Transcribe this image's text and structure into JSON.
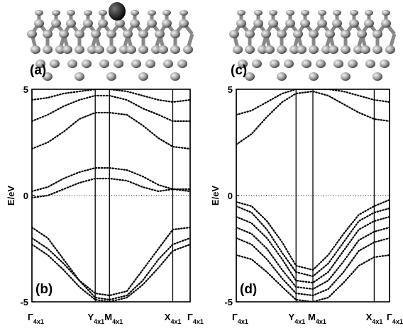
{
  "chart_data": [
    {
      "type": "line",
      "image_label": "(a)",
      "panel_label": "(b)",
      "ylabel": "E/eV",
      "x": [
        0,
        0.1,
        0.2,
        0.3,
        0.4,
        0.49,
        0.6,
        0.7,
        0.8,
        0.89,
        1
      ],
      "xlim": [
        0,
        1
      ],
      "xticks": [
        {
          "value": 0,
          "label": "Γ",
          "sub": "4x1"
        },
        {
          "value": 0.4,
          "label": "Y",
          "sub": "4x1"
        },
        {
          "value": 0.49,
          "label": "M",
          "sub": "4x1"
        },
        {
          "value": 0.89,
          "label": "X",
          "sub": "4x1"
        },
        {
          "value": 1,
          "label": "Γ",
          "sub": "4x1"
        }
      ],
      "ylim": [
        -5,
        5
      ],
      "yticks": [
        -5,
        0,
        5
      ],
      "reference_y": 0,
      "series": [
        {
          "color": "#000000",
          "values": [
            4.5,
            4.6,
            4.8,
            4.9,
            5,
            5,
            4.9,
            4.7,
            4.5,
            4.4,
            4.5
          ]
        },
        {
          "color": "#000000",
          "values": [
            3.5,
            3.8,
            4.2,
            4.5,
            4.7,
            4.7,
            4.5,
            4.1,
            3.8,
            3.5,
            3.5
          ]
        },
        {
          "color": "#000000",
          "values": [
            2.2,
            2.5,
            3.0,
            3.6,
            3.9,
            3.9,
            3.8,
            3.3,
            2.7,
            2.3,
            2.2
          ]
        },
        {
          "color": "#000000",
          "values": [
            0.2,
            0.4,
            0.8,
            1.1,
            1.3,
            1.3,
            1.2,
            0.9,
            0.5,
            0.3,
            0.2
          ]
        },
        {
          "color": "#000000",
          "values": [
            -0.1,
            0,
            0.3,
            0.6,
            0.8,
            0.8,
            0.7,
            0.4,
            0.2,
            0.3,
            0.3
          ]
        },
        {
          "color": "#000000",
          "values": [
            -1.5,
            -2,
            -3,
            -4,
            -4.6,
            -4.7,
            -4.5,
            -3.5,
            -2.5,
            -1.6,
            -1.5
          ]
        },
        {
          "color": "#000000",
          "values": [
            -2,
            -2.5,
            -3.2,
            -4,
            -4.8,
            -4.9,
            -4.7,
            -4,
            -3,
            -2.3,
            -2
          ]
        },
        {
          "color": "#000000",
          "values": [
            -2.3,
            -2.8,
            -3.5,
            -4.3,
            -4.9,
            -5,
            -4.8,
            -4.2,
            -3.4,
            -2.6,
            -2.3
          ]
        }
      ]
    },
    {
      "type": "line",
      "image_label": "(c)",
      "panel_label": "(d)",
      "ylabel": "E/eV",
      "x": [
        0,
        0.1,
        0.2,
        0.3,
        0.39,
        0.5,
        0.6,
        0.7,
        0.8,
        0.9,
        1
      ],
      "xlim": [
        0,
        1
      ],
      "xticks": [
        {
          "value": 0,
          "label": "Γ",
          "sub": "4x1"
        },
        {
          "value": 0.39,
          "label": "Y",
          "sub": "4x1"
        },
        {
          "value": 0.5,
          "label": "M",
          "sub": "4x1"
        },
        {
          "value": 0.9,
          "label": "X",
          "sub": "4x1"
        },
        {
          "value": 1,
          "label": "Γ",
          "sub": "4x1"
        }
      ],
      "ylim": [
        -5,
        5
      ],
      "yticks": [
        -5,
        0,
        5
      ],
      "reference_y": 0,
      "series": [
        {
          "color": "#000000",
          "values": [
            3.8,
            4.0,
            4.4,
            4.8,
            5,
            5,
            5,
            4.9,
            4.7,
            4.5,
            4.4
          ]
        },
        {
          "color": "#000000",
          "values": [
            2.4,
            2.9,
            3.7,
            4.4,
            4.8,
            4.9,
            4.7,
            4.3,
            3.9,
            3.6,
            3.5
          ]
        },
        {
          "color": "#000000",
          "values": [
            -0.3,
            -0.5,
            -1.2,
            -2.2,
            -3.3,
            -3.5,
            -2.8,
            -1.8,
            -0.9,
            -0.5,
            -0.2
          ]
        },
        {
          "color": "#000000",
          "values": [
            -0.5,
            -0.8,
            -1.6,
            -2.7,
            -3.6,
            -3.8,
            -3.2,
            -2.2,
            -1.2,
            -0.8,
            -0.6
          ]
        },
        {
          "color": "#000000",
          "values": [
            -1,
            -1.3,
            -2,
            -3,
            -4,
            -4.1,
            -3.6,
            -2.6,
            -1.6,
            -1.2,
            -1
          ]
        },
        {
          "color": "#000000",
          "values": [
            -1.5,
            -1.8,
            -2.5,
            -3.5,
            -4.3,
            -4.4,
            -4,
            -3.1,
            -2.1,
            -1.7,
            -1.5
          ]
        },
        {
          "color": "#000000",
          "values": [
            -2,
            -2.3,
            -3,
            -3.9,
            -4.6,
            -4.7,
            -4.4,
            -3.6,
            -2.6,
            -2.2,
            -2
          ]
        },
        {
          "color": "#000000",
          "values": [
            -2.8,
            -3,
            -3.6,
            -4.3,
            -4.9,
            -5,
            -4.8,
            -4.1,
            -3.3,
            -2.9,
            -2.8
          ]
        }
      ]
    }
  ]
}
